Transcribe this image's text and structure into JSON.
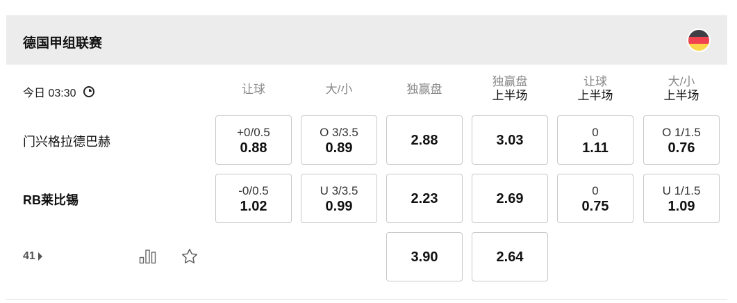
{
  "league": {
    "title": "德国甲组联赛",
    "flag": "germany-flag-icon",
    "flag_colors": [
      "#3f3f46",
      "#f0424f",
      "#fcd64a"
    ]
  },
  "match": {
    "time": "今日 03:30",
    "more_count": "41"
  },
  "columns": [
    {
      "l1": "让球",
      "l2": ""
    },
    {
      "l1": "大/小",
      "l2": ""
    },
    {
      "l1": "独赢盘",
      "l2": ""
    },
    {
      "l1": "独赢盘",
      "l2": "上半场"
    },
    {
      "l1": "让球",
      "l2": "上半场"
    },
    {
      "l1": "大/小",
      "l2": "上半场"
    }
  ],
  "teams": [
    {
      "name": "门兴格拉德巴赫",
      "bold": false,
      "odds": [
        {
          "line": "+0/0.5",
          "odd": "0.88"
        },
        {
          "line": "O 3/3.5",
          "odd": "0.89"
        },
        {
          "line": "",
          "odd": "2.88"
        },
        {
          "line": "",
          "odd": "3.03"
        },
        {
          "line": "0",
          "odd": "1.11"
        },
        {
          "line": "O 1/1.5",
          "odd": "0.76"
        }
      ]
    },
    {
      "name": "RB莱比锡",
      "bold": true,
      "odds": [
        {
          "line": "-0/0.5",
          "odd": "1.02"
        },
        {
          "line": "U 3/3.5",
          "odd": "0.99"
        },
        {
          "line": "",
          "odd": "2.23"
        },
        {
          "line": "",
          "odd": "2.69"
        },
        {
          "line": "0",
          "odd": "0.75"
        },
        {
          "line": "U 1/1.5",
          "odd": "1.09"
        }
      ]
    }
  ],
  "draw": {
    "odds": [
      {
        "odd": "3.90"
      },
      {
        "odd": "2.64"
      }
    ]
  }
}
